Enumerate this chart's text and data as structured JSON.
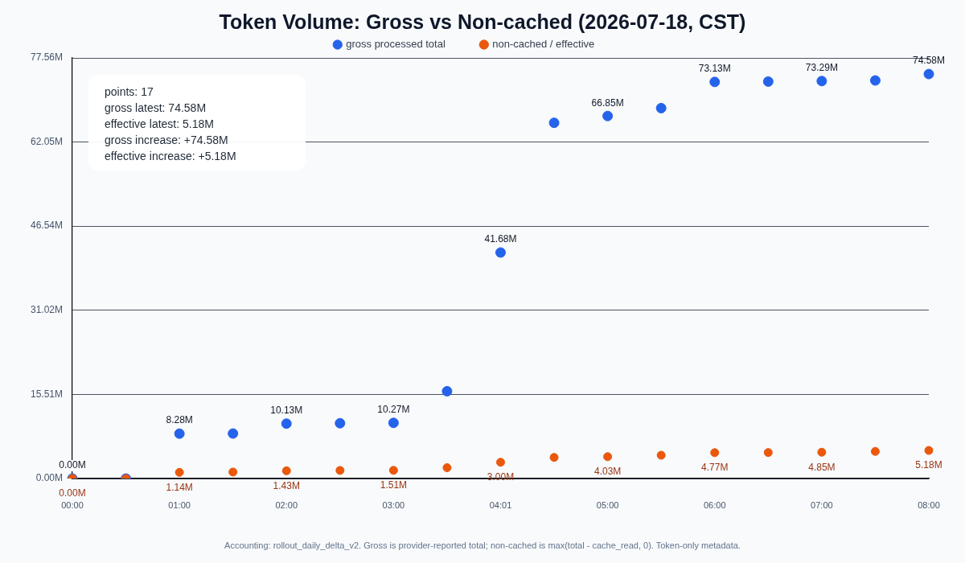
{
  "chart_data": {
    "type": "scatter",
    "title": "Token Volume: Gross vs Non-cached (2026-07-18, CST)",
    "categories": [
      "00:00",
      null,
      "01:00",
      null,
      "02:00",
      null,
      "03:00",
      null,
      "04:01",
      null,
      "05:00",
      null,
      "06:00",
      null,
      "07:00",
      null,
      "08:00"
    ],
    "series": [
      {
        "name": "gross processed total",
        "color": "#2563eb",
        "values": [
          0,
          0,
          8.28,
          8.3,
          10.13,
          10.2,
          10.27,
          16.1,
          41.68,
          65.6,
          66.85,
          68.3,
          73.13,
          73.2,
          73.29,
          73.4,
          74.58
        ],
        "value_labels": [
          "0.00M",
          null,
          "8.28M",
          null,
          "10.13M",
          null,
          "10.27M",
          null,
          "41.68M",
          null,
          "66.85M",
          null,
          "73.13M",
          null,
          "73.29M",
          null,
          "74.58M"
        ]
      },
      {
        "name": "non-cached / effective",
        "color": "#ea580c",
        "values": [
          0,
          0,
          1.14,
          1.2,
          1.43,
          1.5,
          1.51,
          2.0,
          3.0,
          3.9,
          4.03,
          4.3,
          4.77,
          4.8,
          4.85,
          5.0,
          5.18
        ],
        "value_labels": [
          "0.00M",
          null,
          "1.14M",
          null,
          "1.43M",
          null,
          "1.51M",
          null,
          "3.00M",
          null,
          "4.03M",
          null,
          "4.77M",
          null,
          "4.85M",
          null,
          "5.18M"
        ]
      }
    ],
    "ylim": [
      0,
      77.56
    ],
    "yticks": [
      {
        "value": 0,
        "label": "0.00M"
      },
      {
        "value": 15.51,
        "label": "15.51M"
      },
      {
        "value": 31.02,
        "label": "31.02M"
      },
      {
        "value": 46.54,
        "label": "46.54M"
      },
      {
        "value": 62.05,
        "label": "62.05M"
      },
      {
        "value": 77.56,
        "label": "77.56M"
      }
    ],
    "grid": "y",
    "legend": "top",
    "marker": "circle",
    "annotations": [
      "points: 17",
      "gross latest: 74.58M",
      "effective latest: 5.18M",
      "gross increase: +74.58M",
      "effective increase: +5.18M",
      "Accounting: rollout_daily_delta_v2. Gross is provider-reported total; non-cached is max(total - cache_read, 0). Token-only metadata."
    ]
  }
}
